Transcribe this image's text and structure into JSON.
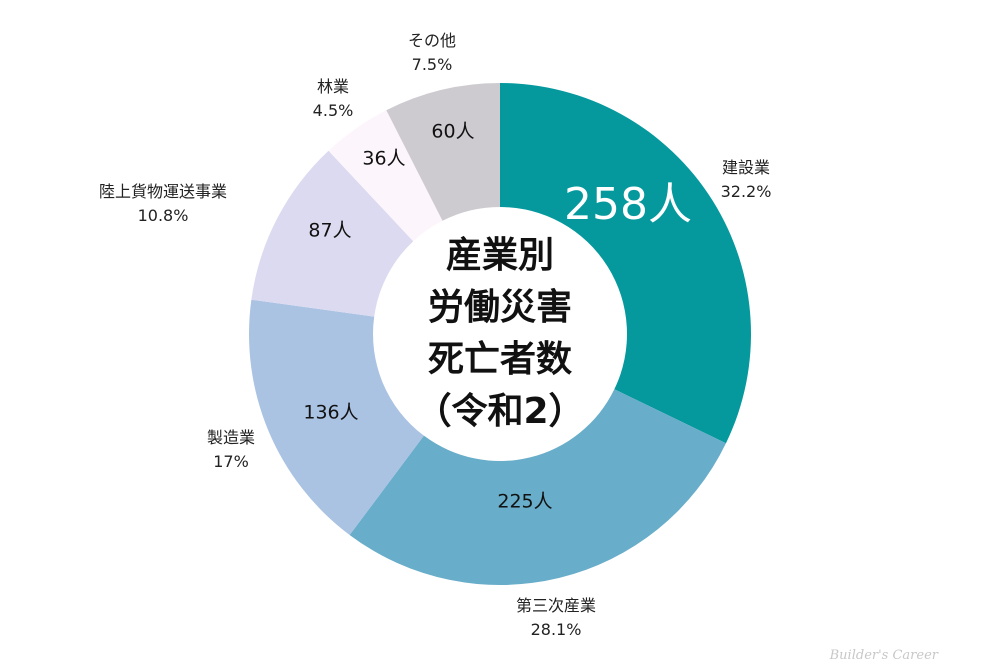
{
  "chart_data": {
    "type": "pie",
    "subtype": "donut",
    "title": "産業別労働災害死亡者数（令和2）",
    "title_lines": [
      "産業別",
      "労働災害",
      "死亡者数",
      "（令和2）"
    ],
    "unit": "人",
    "categories": [
      "建設業",
      "第三次産業",
      "製造業",
      "陸上貨物運送事業",
      "林業",
      "その他"
    ],
    "values": [
      258,
      225,
      136,
      87,
      36,
      60
    ],
    "percentages": [
      "32.2%",
      "28.1%",
      "17%",
      "10.8%",
      "4.5%",
      "7.5%"
    ],
    "colors": [
      "#05999e",
      "#68adc9",
      "#abc3e3",
      "#dcdaf0",
      "#fdf5fc",
      "#cdcbd0"
    ],
    "start_angle": "12 o'clock, clockwise",
    "legend": "none (outer labels)"
  },
  "labels": {
    "construction": {
      "name": "建設業",
      "pct": "32.2%",
      "count": "258人"
    },
    "tertiary": {
      "name": "第三次産業",
      "pct": "28.1%",
      "count": "225人"
    },
    "manufacturing": {
      "name": "製造業",
      "pct": "17%",
      "count": "136人"
    },
    "freight": {
      "name": "陸上貨物運送事業",
      "pct": "10.8%",
      "count": "87人"
    },
    "forestry": {
      "name": "林業",
      "pct": "4.5%",
      "count": "36人"
    },
    "other": {
      "name": "その他",
      "pct": "7.5%",
      "count": "60人"
    }
  },
  "watermark": "Builder's Career"
}
